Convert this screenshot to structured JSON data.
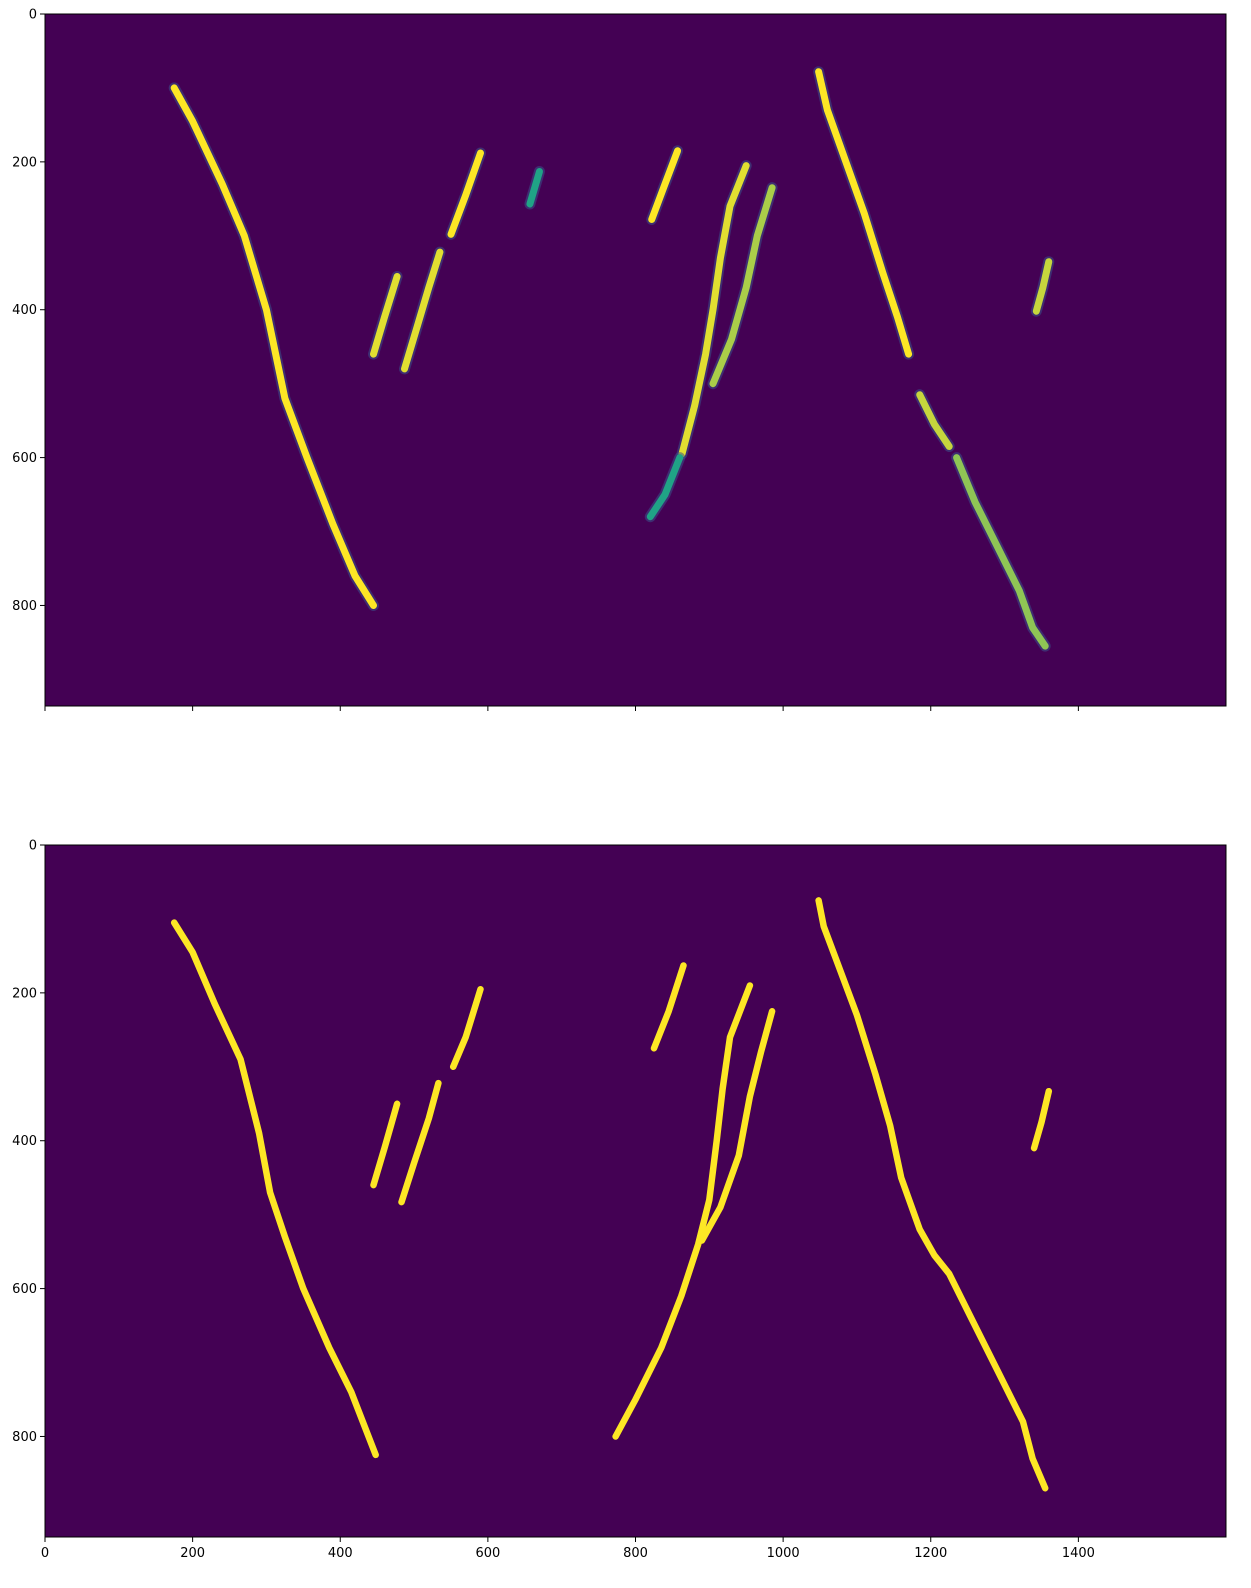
{
  "chart_data": [
    {
      "type": "heatmap",
      "title": "",
      "xlabel": "",
      "ylabel": "",
      "colormap": "viridis",
      "colors": {
        "background": "#440154",
        "high": "#fde725",
        "mid": "#20a386"
      },
      "xlim": [
        0,
        1600
      ],
      "ylim": [
        936,
        0
      ],
      "x_ticks": [
        0,
        200,
        400,
        600,
        800,
        1000,
        1200,
        1400
      ],
      "x_tick_labels": [],
      "y_ticks": [
        0,
        200,
        400,
        600,
        800
      ],
      "y_tick_labels": [
        "0",
        "200",
        "400",
        "600",
        "800"
      ],
      "strokes": [
        {
          "level": 1.0,
          "points": [
            [
              175,
              100
            ],
            [
              200,
              145
            ],
            [
              240,
              230
            ],
            [
              270,
              300
            ],
            [
              300,
              400
            ],
            [
              325,
              520
            ],
            [
              355,
              600
            ],
            [
              390,
              690
            ],
            [
              420,
              760
            ],
            [
              445,
              800
            ]
          ]
        },
        {
          "level": 0.95,
          "points": [
            [
              445,
              460
            ],
            [
              460,
              410
            ],
            [
              477,
              355
            ]
          ]
        },
        {
          "level": 0.95,
          "points": [
            [
              487,
              480
            ],
            [
              505,
              420
            ],
            [
              520,
              370
            ],
            [
              535,
              322
            ]
          ]
        },
        {
          "level": 1.0,
          "points": [
            [
              550,
              298
            ],
            [
              570,
              245
            ],
            [
              590,
              188
            ]
          ]
        },
        {
          "level": 0.6,
          "points": [
            [
              657,
              257
            ],
            [
              670,
              213
            ]
          ]
        },
        {
          "level": 1.0,
          "points": [
            [
              822,
              278
            ],
            [
              840,
              230
            ],
            [
              857,
              185
            ]
          ]
        },
        {
          "level": 0.95,
          "points": [
            [
              863,
              595
            ],
            [
              880,
              530
            ],
            [
              895,
              460
            ],
            [
              905,
              400
            ],
            [
              915,
              330
            ],
            [
              928,
              260
            ],
            [
              950,
              205
            ]
          ]
        },
        {
          "level": 0.85,
          "points": [
            [
              905,
              500
            ],
            [
              930,
              440
            ],
            [
              950,
              370
            ],
            [
              965,
              300
            ],
            [
              985,
              235
            ]
          ]
        },
        {
          "level": 0.6,
          "points": [
            [
              860,
              600
            ],
            [
              840,
              650
            ],
            [
              820,
              680
            ]
          ]
        },
        {
          "level": 1.0,
          "points": [
            [
              1048,
              78
            ],
            [
              1060,
              130
            ],
            [
              1085,
              200
            ],
            [
              1110,
              270
            ],
            [
              1135,
              350
            ],
            [
              1155,
              410
            ],
            [
              1170,
              460
            ]
          ]
        },
        {
          "level": 0.9,
          "points": [
            [
              1185,
              515
            ],
            [
              1205,
              555
            ],
            [
              1225,
              585
            ]
          ]
        },
        {
          "level": 0.8,
          "points": [
            [
              1235,
              600
            ],
            [
              1260,
              660
            ],
            [
              1290,
              720
            ],
            [
              1320,
              780
            ],
            [
              1338,
              830
            ],
            [
              1355,
              855
            ]
          ]
        },
        {
          "level": 0.9,
          "points": [
            [
              1360,
              335
            ],
            [
              1352,
              370
            ],
            [
              1343,
              402
            ]
          ]
        }
      ]
    },
    {
      "type": "heatmap",
      "title": "",
      "xlabel": "",
      "ylabel": "",
      "colormap": "viridis",
      "colors": {
        "background": "#440154",
        "high": "#fde725"
      },
      "xlim": [
        0,
        1600
      ],
      "ylim": [
        936,
        0
      ],
      "x_ticks": [
        0,
        200,
        400,
        600,
        800,
        1000,
        1200,
        1400
      ],
      "x_tick_labels": [
        "0",
        "200",
        "400",
        "600",
        "800",
        "1000",
        "1200",
        "1400"
      ],
      "y_ticks": [
        0,
        200,
        400,
        600,
        800
      ],
      "y_tick_labels": [
        "0",
        "200",
        "400",
        "600",
        "800"
      ],
      "strokes": [
        {
          "level": 1.0,
          "points": [
            [
              175,
              105
            ],
            [
              200,
              145
            ],
            [
              230,
              215
            ],
            [
              265,
              290
            ],
            [
              290,
              390
            ],
            [
              305,
              470
            ],
            [
              325,
              530
            ],
            [
              350,
              600
            ],
            [
              385,
              680
            ],
            [
              415,
              740
            ],
            [
              448,
              825
            ]
          ]
        },
        {
          "level": 1.0,
          "points": [
            [
              445,
              460
            ],
            [
              460,
              410
            ],
            [
              477,
              350
            ]
          ]
        },
        {
          "level": 1.0,
          "points": [
            [
              483,
              483
            ],
            [
              500,
              430
            ],
            [
              520,
              370
            ],
            [
              533,
              322
            ]
          ]
        },
        {
          "level": 1.0,
          "points": [
            [
              553,
              300
            ],
            [
              570,
              260
            ],
            [
              590,
              195
            ]
          ]
        },
        {
          "level": 1.0,
          "points": [
            [
              825,
              275
            ],
            [
              845,
              225
            ],
            [
              865,
              163
            ]
          ]
        },
        {
          "level": 1.0,
          "points": [
            [
              773,
              800
            ],
            [
              800,
              750
            ],
            [
              835,
              680
            ],
            [
              862,
              610
            ],
            [
              885,
              540
            ],
            [
              900,
              480
            ],
            [
              910,
              400
            ],
            [
              918,
              330
            ],
            [
              928,
              260
            ],
            [
              955,
              190
            ]
          ]
        },
        {
          "level": 1.0,
          "points": [
            [
              890,
              535
            ],
            [
              915,
              490
            ],
            [
              940,
              420
            ],
            [
              955,
              340
            ],
            [
              970,
              280
            ],
            [
              985,
              225
            ]
          ]
        },
        {
          "level": 1.0,
          "points": [
            [
              1048,
              75
            ],
            [
              1055,
              110
            ],
            [
              1070,
              150
            ],
            [
              1100,
              230
            ],
            [
              1125,
              310
            ],
            [
              1145,
              380
            ],
            [
              1160,
              450
            ],
            [
              1185,
              520
            ],
            [
              1205,
              555
            ],
            [
              1225,
              580
            ],
            [
              1255,
              640
            ],
            [
              1290,
              710
            ],
            [
              1325,
              780
            ],
            [
              1338,
              830
            ],
            [
              1355,
              870
            ]
          ]
        },
        {
          "level": 1.0,
          "points": [
            [
              1360,
              333
            ],
            [
              1350,
              375
            ],
            [
              1340,
              410
            ]
          ]
        }
      ]
    }
  ]
}
